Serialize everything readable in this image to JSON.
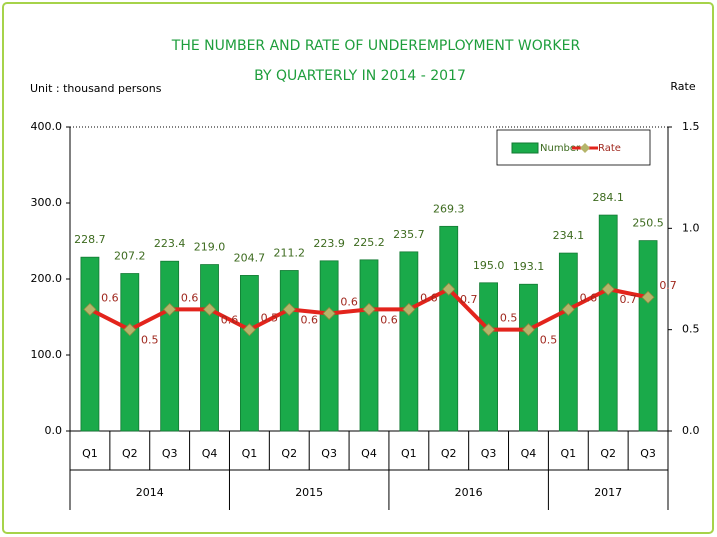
{
  "chart_data": {
    "type": "bar_line",
    "title": [
      "THE NUMBER AND RATE  OF UNDEREMPLOYMENT WORKER",
      "BY QUARTERLY  IN 2014 - 2017"
    ],
    "y_axis_label": "Unit : thousand persons",
    "y2_axis_label": "Rate",
    "categories": [
      "Q1",
      "Q2",
      "Q3",
      "Q4",
      "Q1",
      "Q2",
      "Q3",
      "Q4",
      "Q1",
      "Q2",
      "Q3",
      "Q4",
      "Q1",
      "Q2",
      "Q3"
    ],
    "x_groups": [
      {
        "name": "2014",
        "count": 4
      },
      {
        "name": "2015",
        "count": 4
      },
      {
        "name": "2016",
        "count": 4
      },
      {
        "name": "2017",
        "count": 3
      }
    ],
    "series": [
      {
        "name": "Number",
        "kind": "bar",
        "color": "#1aaa4a",
        "values": [
          228.7,
          207.2,
          223.4,
          219.0,
          204.7,
          211.2,
          223.9,
          225.2,
          235.7,
          269.3,
          195.0,
          193.1,
          234.1,
          284.1,
          250.5
        ],
        "value_labels": [
          "228.7",
          "207.2",
          "223.4",
          "219.0",
          "204.7",
          "211.2",
          "223.9",
          "225.2",
          "235.7",
          "269.3",
          "195.0",
          "193.1",
          "234.1",
          "284.1",
          "250.5"
        ]
      },
      {
        "name": "Rate",
        "kind": "line",
        "axis": "y2",
        "color": "#e3241c",
        "marker_color": "#b5b56a",
        "values": [
          0.6,
          0.5,
          0.6,
          0.6,
          0.5,
          0.6,
          0.58,
          0.6,
          0.6,
          0.7,
          0.5,
          0.5,
          0.6,
          0.7,
          0.66
        ],
        "value_labels": [
          "0.6",
          "0.5",
          "0.6",
          "0.6",
          "0.5",
          "0.6",
          "0.6",
          "0.6",
          "0.6",
          "0.7",
          "0.5",
          "0.5",
          "0.6",
          "0.7",
          "0.7"
        ]
      }
    ],
    "ylim": [
      0,
      400
    ],
    "yticks": [
      {
        "value": 0,
        "label": "0.0"
      },
      {
        "value": 100,
        "label": "100.0"
      },
      {
        "value": 200,
        "label": "200.0"
      },
      {
        "value": 300,
        "label": "300.0"
      },
      {
        "value": 400,
        "label": "400.0"
      }
    ],
    "y2lim": [
      0,
      1.5
    ],
    "y2ticks": [
      {
        "value": 0,
        "label": "0.0"
      },
      {
        "value": 0.5,
        "label": "0.5"
      },
      {
        "value": 1,
        "label": "1.0"
      },
      {
        "value": 1.5,
        "label": "1.5"
      }
    ],
    "legend": "top-right",
    "grid": false
  }
}
